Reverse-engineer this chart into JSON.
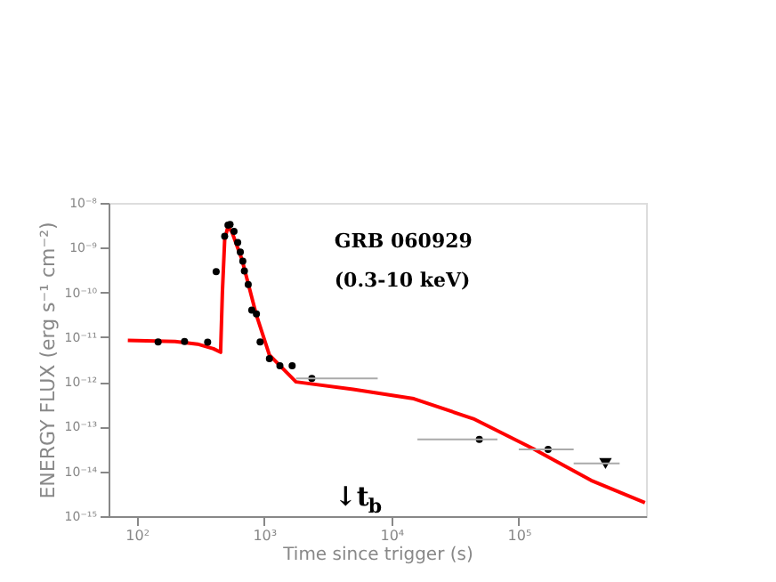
{
  "chart_data": {
    "type": "scatter",
    "xlabel": "Time since trigger (s)",
    "ylabel": "ENERGY FLUX (erg s⁻¹ cm⁻²)",
    "log": "xy",
    "grid": false,
    "xlim": [
      60,
      1000000
    ],
    "ylim": [
      1e-15,
      1e-08
    ],
    "xticks": [
      {
        "value": 100,
        "label": "10²"
      },
      {
        "value": 1000,
        "label": "10³"
      },
      {
        "value": 10000,
        "label": "10⁴"
      },
      {
        "value": 100000,
        "label": "10⁵"
      }
    ],
    "yticks": [
      {
        "value": 1e-15,
        "label": "10⁻¹⁵"
      },
      {
        "value": 1e-14,
        "label": "10⁻¹⁴"
      },
      {
        "value": 1e-13,
        "label": "10⁻¹³"
      },
      {
        "value": 1e-12,
        "label": "10⁻¹²"
      },
      {
        "value": 1e-11,
        "label": "10⁻¹¹"
      },
      {
        "value": 1e-10,
        "label": "10⁻¹⁰"
      },
      {
        "value": 1e-09,
        "label": "10⁻⁹"
      },
      {
        "value": 1e-08,
        "label": "10⁻⁸"
      }
    ],
    "series": [
      {
        "marker": "circle",
        "color": "#000000",
        "x": [
          147,
          237,
          360,
          420,
          490,
          520,
          540,
          580,
          620,
          650,
          680,
          700,
          750,
          800,
          870,
          930,
          1100,
          1330,
          1660,
          2370,
          49000,
          170000
        ],
        "values": [
          7.8e-12,
          8e-12,
          7.7e-12,
          2.9e-10,
          1.8e-09,
          3.2e-09,
          3.3e-09,
          2.3e-09,
          1.3e-09,
          8e-10,
          5e-10,
          3e-10,
          1.5e-10,
          4e-11,
          3.3e-11,
          7.8e-12,
          3.3e-12,
          2.3e-12,
          2.3e-12,
          1.2e-12,
          5.2e-14,
          3.1e-14
        ],
        "xerrors": [
          null,
          null,
          null,
          null,
          null,
          null,
          null,
          null,
          null,
          null,
          null,
          null,
          null,
          null,
          null,
          null,
          null,
          null,
          null,
          [
            1780,
            7800
          ],
          [
            16000,
            68000
          ],
          [
            100000,
            270000
          ]
        ]
      },
      {
        "marker": "triangle",
        "color": "#000000",
        "x": [
          480000
        ],
        "values": [
          1.5e-14
        ],
        "xerrors": [
          [
            270000,
            620000
          ]
        ]
      },
      {
        "type": "line",
        "color": "#ff0000",
        "line_style": "solid",
        "x": [
          85,
          200,
          300,
          400,
          455,
          470,
          490,
          520,
          560,
          670,
          870,
          1100,
          1780,
          5000,
          15000,
          44000,
          130000,
          370000,
          980000
        ],
        "values": [
          8.5e-12,
          8e-12,
          7e-12,
          5.5e-12,
          4.6e-12,
          1e-10,
          1.5e-09,
          3e-09,
          2.2e-09,
          5.4e-10,
          3.1e-11,
          4e-12,
          1e-12,
          6.8e-13,
          4.2e-13,
          1.5e-13,
          3.2e-14,
          6.3e-15,
          2e-15
        ]
      }
    ],
    "annotations": [
      "GRB 060929",
      "(0.3-10 keV)",
      "↓t$_{b}$"
    ]
  }
}
